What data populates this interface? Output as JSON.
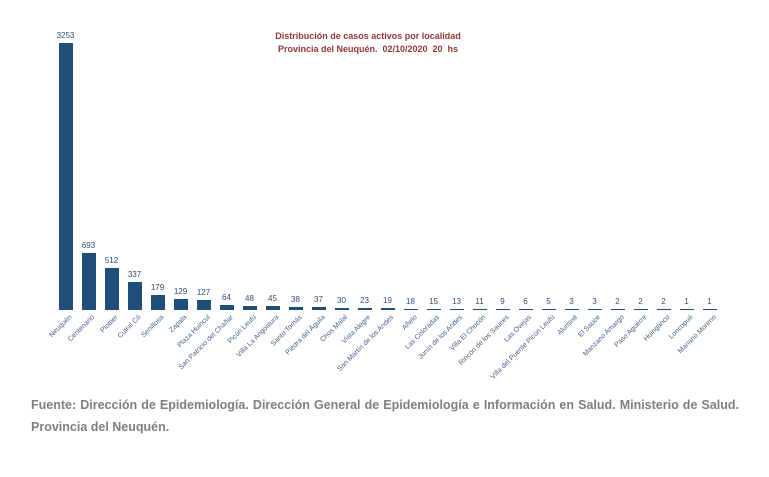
{
  "chart": {
    "title": "Distribución de casos activos por localidad",
    "subtitle": "Provincia del Neuquén.  02/10/2020  20  hs"
  },
  "footer": {
    "text": "Fuente: Dirección de Epidemiología. Dirección General de Epidemiología e Información en Salud. Ministerio de Salud. Provincia del Neuquén."
  },
  "colors": {
    "background": "#FFFFFF",
    "bar": "#1F4E79",
    "value_label": "#2E4E79",
    "axis_label": "#44608A",
    "title": "#953735",
    "footer": "#7F7F7F"
  },
  "chart_data": {
    "type": "bar",
    "title": "Distribución de casos activos por localidad",
    "subtitle": "Provincia del Neuquén. 02/10/2020 20 hs",
    "xlabel": "",
    "ylabel": "",
    "ylim": [
      0,
      3253
    ],
    "grid": false,
    "legend": false,
    "bar_color": "#1F4E79",
    "value_labels_shown": true,
    "category_label_rotation_deg": 45,
    "categories": [
      "Neuquén",
      "Centenario",
      "Plottier",
      "Cutral Có",
      "Senillosa",
      "Zapala",
      "Plaza Huincul",
      "San Patricio del Chañar",
      "Picún Leufú",
      "Villa La Angostura",
      "Santo Tomás",
      "Piedra del Águila",
      "Chos Malal",
      "Vista Alegre",
      "San Martín de los Andes",
      "Añelo",
      "Las Coloradas",
      "Junín de los Andes",
      "Villa El Chocón",
      "Rincón de los Sauces",
      "Las Ovejas",
      "Villa del Puente Picún Leufú",
      "Aluminé",
      "El Sauce",
      "Manzano Amargo",
      "Paso Aguerre",
      "Huinganco",
      "Loncopué",
      "Mariano Moreno"
    ],
    "values": [
      3253,
      693,
      512,
      337,
      179,
      129,
      127,
      64,
      48,
      45,
      38,
      37,
      30,
      23,
      19,
      18,
      15,
      13,
      11,
      9,
      6,
      5,
      3,
      3,
      2,
      2,
      2,
      1,
      1
    ]
  }
}
